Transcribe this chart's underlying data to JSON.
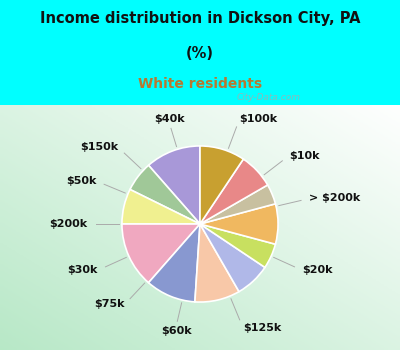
{
  "title_line1": "Income distribution in Dickson City, PA",
  "title_line2": "(%)",
  "subtitle": "White residents",
  "title_color": "#111111",
  "subtitle_color": "#b87830",
  "bg_cyan": "#00ffff",
  "chart_bg_color": "#e8f5ee",
  "watermark": "City-Data.com",
  "labels": [
    "$100k",
    "$10k",
    "> $200k",
    "$20k",
    "$125k",
    "$60k",
    "$75k",
    "$30k",
    "$200k",
    "$50k",
    "$150k",
    "$40k"
  ],
  "values": [
    11,
    6,
    7,
    13,
    10,
    9,
    7,
    5,
    8,
    4,
    7,
    9
  ],
  "colors": [
    "#a898d8",
    "#a0c898",
    "#f0f090",
    "#f0a8c0",
    "#8898d0",
    "#f8c8a8",
    "#b0b8e8",
    "#c8e060",
    "#f0b860",
    "#c8c0a0",
    "#e88888",
    "#c8a030"
  ],
  "wedge_edge_color": "#ffffff",
  "label_fontsize": 8.0,
  "label_color": "#111111",
  "figsize": [
    4.0,
    3.5
  ],
  "dpi": 100
}
